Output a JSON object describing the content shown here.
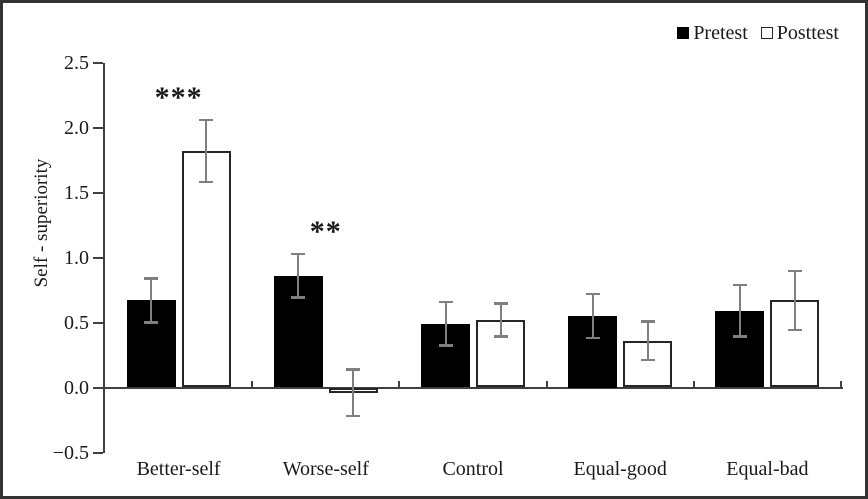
{
  "figure": {
    "background": "#ffffff",
    "border_color": "#333333"
  },
  "chart_data": {
    "type": "bar",
    "title": "",
    "xlabel": "",
    "ylabel": "Self - superiority",
    "categories": [
      "Better-self",
      "Worse-self",
      "Control",
      "Equal-good",
      "Equal-bad"
    ],
    "series": [
      {
        "name": "Pretest",
        "fill": "#000000",
        "stroke": "#000000",
        "values": [
          0.67,
          0.86,
          0.49,
          0.55,
          0.59
        ],
        "errors": [
          0.17,
          0.17,
          0.17,
          0.17,
          0.2
        ]
      },
      {
        "name": "Posttest",
        "fill": "#ffffff",
        "stroke": "#262626",
        "values": [
          1.82,
          -0.04,
          0.52,
          0.36,
          0.67
        ],
        "errors": [
          0.24,
          0.18,
          0.13,
          0.15,
          0.23
        ]
      }
    ],
    "ylim": [
      -0.5,
      2.5
    ],
    "yticks": [
      {
        "value": -0.5,
        "label": "−0.5"
      },
      {
        "value": 0.0,
        "label": "0.0"
      },
      {
        "value": 0.5,
        "label": "0.5"
      },
      {
        "value": 1.0,
        "label": "1.0"
      },
      {
        "value": 1.5,
        "label": "1.5"
      },
      {
        "value": 2.0,
        "label": "2.0"
      },
      {
        "value": 2.5,
        "label": "2.5"
      }
    ],
    "grid": false,
    "legend_position": "top-right",
    "axis_color": "#404040",
    "error_color": "#7f7f7f",
    "annotations": [
      {
        "text": "***",
        "category": "Better-self"
      },
      {
        "text": "**",
        "category": "Worse-self"
      }
    ]
  }
}
